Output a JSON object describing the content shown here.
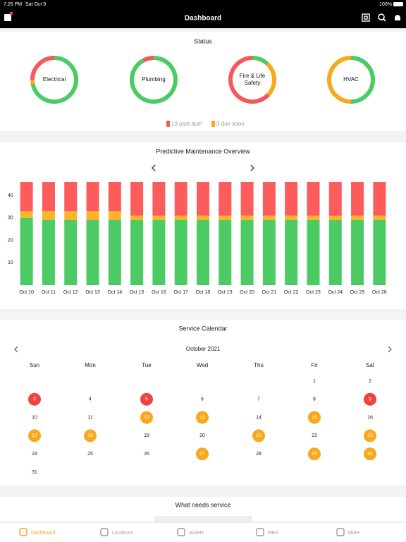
{
  "status_bar": {
    "time": "7:26 PM",
    "date": "Sat Oct 9",
    "battery": "100%"
  },
  "nav": {
    "title": "Dashboard"
  },
  "status": {
    "title": "Status",
    "donuts": [
      {
        "label": "Electrical",
        "segments": [
          {
            "value": 72,
            "color": "#4ccb64"
          },
          {
            "value": 3,
            "color": "#f9a81b"
          },
          {
            "value": 25,
            "color": "#f55a5a"
          }
        ]
      },
      {
        "label": "Plumbing",
        "segments": [
          {
            "value": 92,
            "color": "#4ccb64"
          },
          {
            "value": 8,
            "color": "#f55a5a"
          }
        ]
      },
      {
        "label": "Fire & Life Safety",
        "segments": [
          {
            "value": 12,
            "color": "#4ccb64"
          },
          {
            "value": 25,
            "color": "#f9a81b"
          },
          {
            "value": 63,
            "color": "#f55a5a"
          }
        ]
      },
      {
        "label": "HVAC",
        "segments": [
          {
            "value": 50,
            "color": "#4ccb64"
          },
          {
            "value": 50,
            "color": "#f9a81b"
          }
        ]
      }
    ],
    "legend": [
      {
        "text": "13 past due!",
        "color": "#f55a5a"
      },
      {
        "text": "3 due soon",
        "color": "#f9a81b"
      }
    ]
  },
  "chart_data": {
    "type": "bar",
    "stacked": true,
    "title": "Predictive Maintenance Overview",
    "categories": [
      "Oct 10",
      "Oct 11",
      "Oct 12",
      "Oct 13",
      "Oct 14",
      "Oct 15",
      "Oct 16",
      "Oct 17",
      "Oct 18",
      "Oct 19",
      "Oct 20",
      "Oct 21",
      "Oct 22",
      "Oct 23",
      "Oct 24",
      "Oct 25",
      "Oct 26"
    ],
    "series": [
      {
        "color": "#4ccb64",
        "values": [
          30,
          29,
          29,
          29,
          29,
          29,
          29,
          29,
          29,
          29,
          29,
          29,
          29,
          29,
          29,
          29,
          29
        ]
      },
      {
        "color": "#f9b42a",
        "values": [
          3,
          4,
          4,
          4,
          4,
          2,
          2,
          2,
          2,
          2,
          2,
          2,
          2,
          2,
          2,
          2,
          2
        ]
      },
      {
        "color": "#fd5c5c",
        "values": [
          13,
          13,
          13,
          13,
          13,
          15,
          15,
          15,
          15,
          15,
          15,
          15,
          15,
          15,
          15,
          15,
          15
        ]
      }
    ],
    "ylim": [
      0,
      46
    ],
    "yticks": [
      10,
      20,
      30,
      40
    ]
  },
  "calendar": {
    "title": "Service Calendar",
    "month": "October 2021",
    "weekdays": [
      "Sun",
      "Mon",
      "Tue",
      "Wed",
      "Thu",
      "Fri",
      "Sat"
    ],
    "weeks": [
      [
        null,
        null,
        null,
        null,
        null,
        1,
        2
      ],
      [
        {
          "day": 3,
          "color": "#f24141"
        },
        4,
        {
          "day": 5,
          "color": "#f24141"
        },
        6,
        7,
        8,
        {
          "day": 9,
          "color": "#f24141"
        }
      ],
      [
        10,
        11,
        {
          "day": 12,
          "color": "#f9a81b"
        },
        {
          "day": 13,
          "color": "#f9a81b"
        },
        14,
        {
          "day": 15,
          "color": "#f9a81b"
        },
        16
      ],
      [
        {
          "day": 17,
          "color": "#f9a81b"
        },
        {
          "day": 18,
          "color": "#f9a81b"
        },
        19,
        20,
        {
          "day": 21,
          "color": "#f9a81b"
        },
        22,
        {
          "day": 23,
          "color": "#f9a81b"
        }
      ],
      [
        24,
        25,
        26,
        {
          "day": 27,
          "color": "#f9a81b"
        },
        28,
        {
          "day": 29,
          "color": "#f9a81b"
        },
        {
          "day": 30,
          "color": "#f9a81b"
        }
      ],
      [
        31
      ]
    ]
  },
  "service": {
    "title": "What needs service"
  },
  "tabs": [
    {
      "label": "Dashboard",
      "active": true
    },
    {
      "label": "Locations",
      "active": false
    },
    {
      "label": "Assets",
      "active": false
    },
    {
      "label": "Files",
      "active": false
    },
    {
      "label": "More",
      "active": false
    }
  ]
}
